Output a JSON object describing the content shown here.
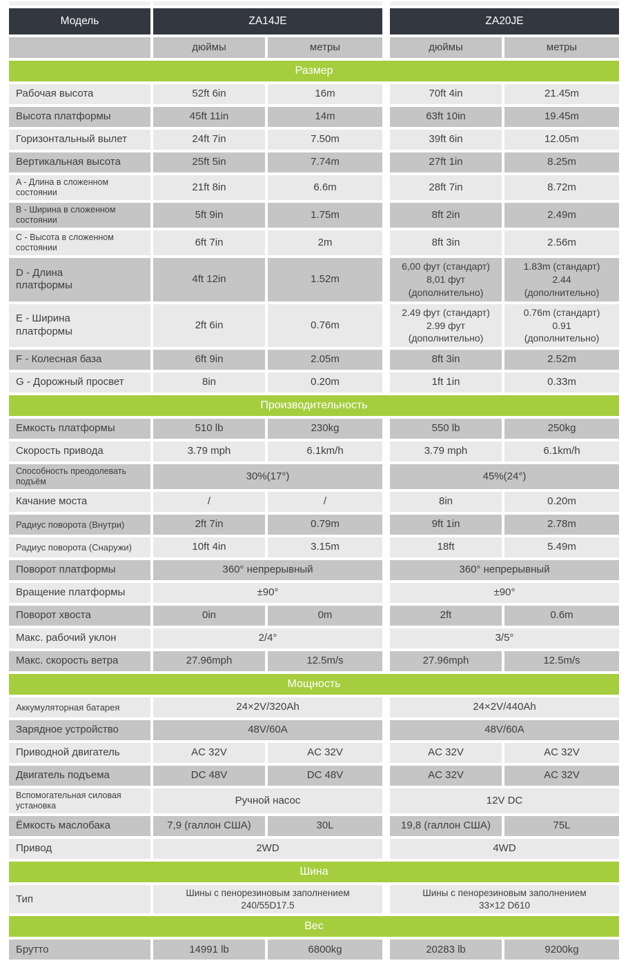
{
  "colors": {
    "header_dark": "#333840",
    "section_green": "#a5cd3e",
    "row_light": "#e9e9e9",
    "row_dark": "#c5c5c5",
    "units_gray": "#c4c4c4",
    "text": "#3e3e3e",
    "header_text": "#ffffff"
  },
  "table": {
    "header": {
      "model": "Модель",
      "group1": "ZA14JE",
      "group2": "ZA20JE"
    },
    "units": {
      "label": "",
      "cols": [
        "дюймы",
        "метры",
        "дюймы",
        "метры"
      ]
    },
    "rows": [
      {
        "type": "section",
        "label": "Размер"
      },
      {
        "type": "data",
        "shade": "light",
        "label": "Рабочая высота",
        "cells": [
          "52ft 6in",
          "16m",
          "70ft 4in",
          "21.45m"
        ]
      },
      {
        "type": "data",
        "shade": "dark",
        "label": "Высота платформы",
        "cells": [
          "45ft 11in",
          "14m",
          "63ft 10in",
          "19.45m"
        ]
      },
      {
        "type": "data",
        "shade": "light",
        "label": "Горизонтальный вылет",
        "cells": [
          "24ft 7in",
          "7.50m",
          "39ft 6in",
          "12.05m"
        ]
      },
      {
        "type": "data",
        "shade": "dark",
        "label": "Вертикальная высота",
        "cells": [
          "25ft 5in",
          "7.74m",
          "27ft 1in",
          "8.25m"
        ]
      },
      {
        "type": "data",
        "shade": "light",
        "label": "A - Длина в сложенном состоянии",
        "label_size": "sm",
        "cells": [
          "21ft 8in",
          "6.6m",
          "28ft 7in",
          "8.72m"
        ]
      },
      {
        "type": "data",
        "shade": "dark",
        "label": "B - Ширина в сложенном состоянии",
        "label_size": "sm",
        "cells": [
          "5ft 9in",
          "1.75m",
          "8ft 2in",
          "2.49m"
        ]
      },
      {
        "type": "data",
        "shade": "light",
        "label": "C - Высота в сложенном состоянии",
        "label_size": "sm",
        "cells": [
          "6ft 7in",
          "2m",
          "8ft 3in",
          "2.56m"
        ]
      },
      {
        "type": "data",
        "shade": "dark",
        "label": "D - Длина\nплатформы",
        "cells": [
          "4ft 12in",
          "1.52m",
          {
            "text": "6,00 фут (стандарт)\n8,01 фут\n(дополнительно)",
            "size": "md"
          },
          {
            "text": "1.83m (стандарт)\n2.44\n(дополнительно)",
            "size": "md"
          }
        ]
      },
      {
        "type": "data",
        "shade": "light",
        "label": "E - Ширина\nплатформы",
        "cells": [
          "2ft 6in",
          "0.76m",
          {
            "text": "2.49 фут (стандарт)\n2.99 фут\n(дополнительно)",
            "size": "md"
          },
          {
            "text": "0.76m (стандарт)\n0.91\n(дополнительно)",
            "size": "md"
          }
        ]
      },
      {
        "type": "data",
        "shade": "dark",
        "label": "F - Колесная база",
        "cells": [
          "6ft 9in",
          "2.05m",
          "8ft 3in",
          "2.52m"
        ]
      },
      {
        "type": "data",
        "shade": "light",
        "label": "G - Дорожный просвет",
        "cells": [
          "8in",
          "0.20m",
          "1ft 1in",
          "0.33m"
        ]
      },
      {
        "type": "section",
        "label": "Производительность"
      },
      {
        "type": "data",
        "shade": "dark",
        "label": "Емкость платформы",
        "cells": [
          "510 lb",
          "230kg",
          "550 lb",
          "250kg"
        ]
      },
      {
        "type": "data",
        "shade": "light",
        "label": "Скорость привода",
        "cells": [
          "3.79 mph",
          "6.1km/h",
          "3.79 mph",
          "6.1km/h"
        ]
      },
      {
        "type": "data",
        "shade": "dark",
        "label": "Способность преодолевать подъём",
        "label_size": "sm",
        "cells": [
          {
            "text": "30%(17°)",
            "span": 2
          },
          {
            "text": "45%(24°)",
            "span": 2
          }
        ]
      },
      {
        "type": "data",
        "shade": "light",
        "label": "Качание моста",
        "cells": [
          "/",
          "/",
          "8in",
          "0.20m"
        ]
      },
      {
        "type": "data",
        "shade": "dark",
        "label": "Радиус поворота (Внутри)",
        "label_size": "md",
        "cells": [
          "2ft 7in",
          "0.79m",
          "9ft 1in",
          "2.78m"
        ]
      },
      {
        "type": "data",
        "shade": "light",
        "label": "Радиус поворота (Снаружи)",
        "label_size": "md",
        "cells": [
          "10ft 4in",
          "3.15m",
          "18ft",
          "5.49m"
        ]
      },
      {
        "type": "data",
        "shade": "dark",
        "label": "Поворот платформы",
        "cells": [
          {
            "text": "360° непрерывный",
            "span": 2
          },
          {
            "text": "360° непрерывный",
            "span": 2
          }
        ]
      },
      {
        "type": "data",
        "shade": "light",
        "label": "Вращение платформы",
        "cells": [
          {
            "text": "±90°",
            "span": 2
          },
          {
            "text": "±90°",
            "span": 2
          }
        ]
      },
      {
        "type": "data",
        "shade": "dark",
        "label": "Поворот хвоста",
        "cells": [
          "0in",
          "0m",
          "2ft",
          "0.6m"
        ]
      },
      {
        "type": "data",
        "shade": "light",
        "label": "Макс. рабочий уклон",
        "cells": [
          {
            "text": "2/4°",
            "span": 2
          },
          {
            "text": "3/5°",
            "span": 2
          }
        ]
      },
      {
        "type": "data",
        "shade": "dark",
        "label": "Макс. скорость ветра",
        "cells": [
          "27.96mph",
          "12.5m/s",
          "27.96mph",
          "12.5m/s"
        ]
      },
      {
        "type": "section",
        "label": "Мощность"
      },
      {
        "type": "data",
        "shade": "light",
        "label": "Аккумуляторная батарея",
        "label_size": "md",
        "cells": [
          {
            "text": "24×2V/320Ah",
            "span": 2
          },
          {
            "text": "24×2V/440Ah",
            "span": 2
          }
        ]
      },
      {
        "type": "data",
        "shade": "dark",
        "label": "Зарядное устройство",
        "cells": [
          {
            "text": "48V/60A",
            "span": 2
          },
          {
            "text": "48V/60A",
            "span": 2
          }
        ]
      },
      {
        "type": "data",
        "shade": "light",
        "label": "Приводной двигатель",
        "cells": [
          "AC 32V",
          "AC 32V",
          "AC 32V",
          "AC 32V"
        ]
      },
      {
        "type": "data",
        "shade": "dark",
        "label": "Двигатель подъема",
        "cells": [
          "DC 48V",
          "DC 48V",
          "AC 32V",
          "AC 32V"
        ]
      },
      {
        "type": "data",
        "shade": "light",
        "label": "Вспомогательная силовая установка",
        "label_size": "sm",
        "cells": [
          {
            "text": "Ручной насос",
            "span": 2
          },
          {
            "text": "12V DC",
            "span": 2
          }
        ]
      },
      {
        "type": "data",
        "shade": "dark",
        "label": "Ёмкость маслобака",
        "cells": [
          "7,9 (галлон США)",
          "30L",
          "19,8 (галлон США)",
          "75L"
        ]
      },
      {
        "type": "data",
        "shade": "light",
        "label": "Привод",
        "cells": [
          {
            "text": "2WD",
            "span": 2
          },
          {
            "text": "4WD",
            "span": 2
          }
        ]
      },
      {
        "type": "section",
        "label": "Шина"
      },
      {
        "type": "data",
        "shade": "light",
        "label": "Тип",
        "cells": [
          {
            "text": "Шины с пенорезиновым заполнением\n240/55D17.5",
            "span": 2,
            "size": "sm"
          },
          {
            "text": "Шины с пенорезиновым заполнением\n33×12 D610",
            "span": 2,
            "size": "sm"
          }
        ]
      },
      {
        "type": "section",
        "label": "Вес"
      },
      {
        "type": "data",
        "shade": "dark",
        "label": "Брутто",
        "cells": [
          "14991 lb",
          "6800kg",
          "20283 lb",
          "9200kg"
        ]
      }
    ]
  }
}
